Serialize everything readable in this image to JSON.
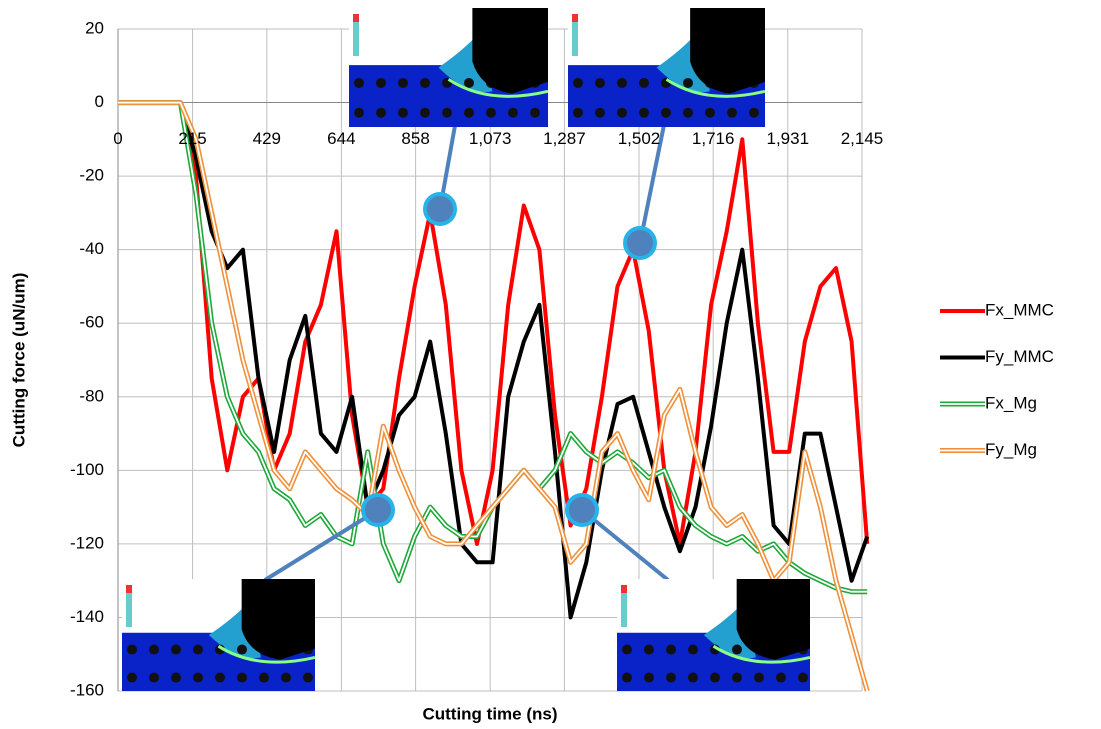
{
  "chart_data": {
    "type": "line",
    "x_label": "Cutting time (ns)",
    "y_label": "Cutting force (uN/um)",
    "x": [
      0,
      45,
      90,
      135,
      180,
      225,
      270,
      315,
      360,
      405,
      450,
      495,
      540,
      585,
      630,
      675,
      720,
      765,
      810,
      855,
      900,
      945,
      990,
      1035,
      1080,
      1125,
      1170,
      1215,
      1260,
      1305,
      1350,
      1395,
      1440,
      1485,
      1530,
      1575,
      1620,
      1665,
      1710,
      1755,
      1800,
      1845,
      1890,
      1935,
      1980,
      2025,
      2070,
      2115,
      2160
    ],
    "series": [
      {
        "name": "Fx_MMC",
        "color": "#ff0000",
        "style": "solid",
        "values": [
          0,
          0,
          0,
          0,
          0,
          -20,
          -75,
          -100,
          -80,
          -75,
          -100,
          -90,
          -65,
          -55,
          -35,
          -85,
          -110,
          -105,
          -75,
          -50,
          -30,
          -55,
          -100,
          -120,
          -100,
          -55,
          -28,
          -40,
          -85,
          -115,
          -105,
          -80,
          -50,
          -40,
          -62,
          -100,
          -120,
          -95,
          -55,
          -35,
          -10,
          -60,
          -95,
          -95,
          -65,
          -50,
          -45,
          -65,
          -120
        ]
      },
      {
        "name": "Fy_MMC",
        "color": "#000000",
        "style": "solid",
        "values": [
          0,
          0,
          0,
          0,
          0,
          -15,
          -35,
          -45,
          -40,
          -75,
          -95,
          -70,
          -58,
          -90,
          -95,
          -80,
          -110,
          -100,
          -85,
          -80,
          -65,
          -90,
          -120,
          -125,
          -125,
          -80,
          -65,
          -55,
          -95,
          -140,
          -125,
          -100,
          -82,
          -80,
          -95,
          -110,
          -122,
          -110,
          -88,
          -60,
          -40,
          -75,
          -115,
          -120,
          -90,
          -90,
          -110,
          -130,
          -118
        ]
      },
      {
        "name": "Fx_Mg",
        "color": "#1fa83a",
        "style": "double",
        "values": [
          0,
          0,
          0,
          0,
          0,
          -25,
          -60,
          -80,
          -90,
          -95,
          -105,
          -108,
          -115,
          -112,
          -118,
          -120,
          -95,
          -120,
          -130,
          -118,
          -110,
          -115,
          -118,
          -118,
          -110,
          -105,
          -100,
          -105,
          -100,
          -90,
          -95,
          -98,
          -95,
          -98,
          -102,
          -100,
          -110,
          -115,
          -118,
          -120,
          -118,
          -122,
          -120,
          -125,
          -128,
          -130,
          -132,
          -133,
          -133
        ]
      },
      {
        "name": "Fy_Mg",
        "color": "#f0903a",
        "style": "double",
        "values": [
          0,
          0,
          0,
          0,
          0,
          -10,
          -30,
          -50,
          -70,
          -85,
          -100,
          -105,
          -95,
          -100,
          -105,
          -108,
          -112,
          -88,
          -100,
          -110,
          -118,
          -120,
          -120,
          -115,
          -110,
          -105,
          -100,
          -105,
          -110,
          -125,
          -120,
          -95,
          -90,
          -100,
          -108,
          -85,
          -78,
          -95,
          -110,
          -115,
          -112,
          -120,
          -130,
          -125,
          -95,
          -110,
          -130,
          -145,
          -160
        ]
      }
    ],
    "xlim": [
      0,
      2145
    ],
    "xticks": [
      0,
      215,
      429,
      644,
      858,
      {
        "value": 1073,
        "label": "1,073"
      },
      {
        "value": 1287,
        "label": "1,287"
      },
      {
        "value": 1502,
        "label": "1,502"
      },
      {
        "value": 1716,
        "label": "1,716"
      },
      {
        "value": 1931,
        "label": "1,931"
      },
      {
        "value": 2145,
        "label": "2,145"
      }
    ],
    "ylim": [
      -160,
      20
    ],
    "yticks": [
      -160,
      -140,
      -120,
      -100,
      -80,
      -60,
      -40,
      -20,
      0,
      20
    ],
    "grid": true,
    "legend": "right"
  }
}
